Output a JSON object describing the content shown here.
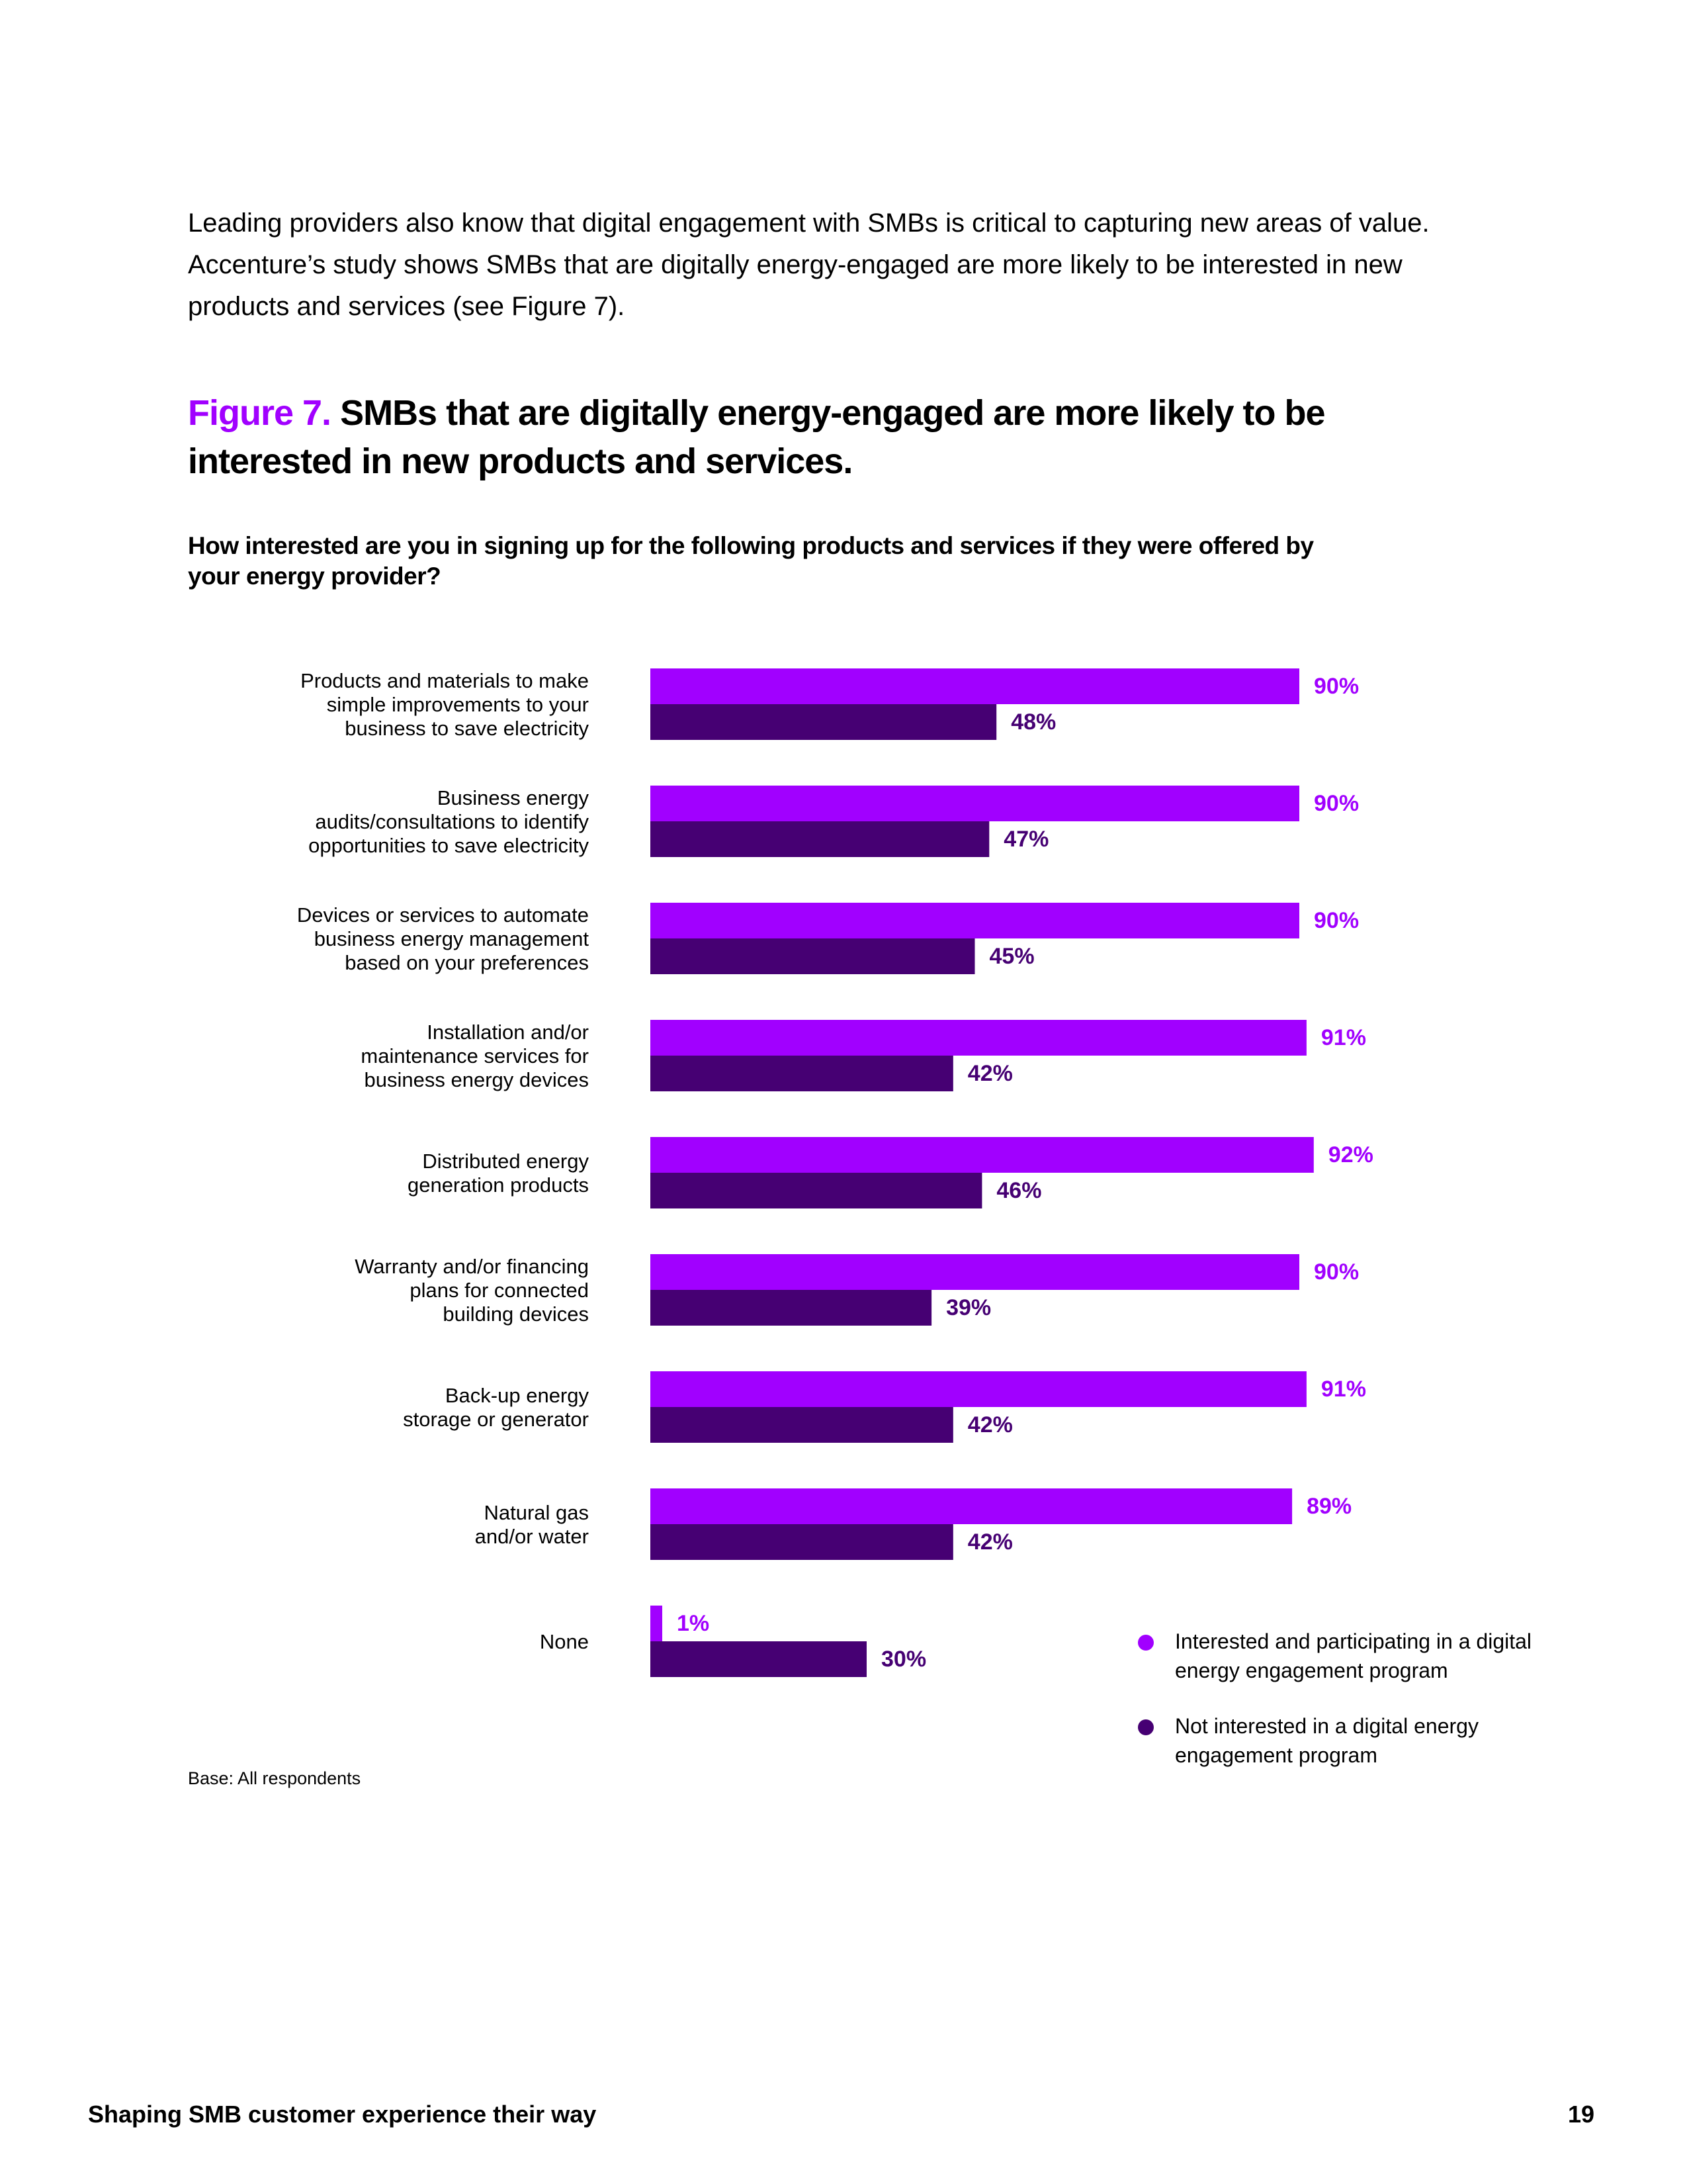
{
  "intro": "Leading providers also know that digital engagement with SMBs is critical to capturing new areas of value. Accenture’s study shows SMBs that are digitally energy-engaged are more likely to be interested in new products and services (see Figure 7).",
  "figure": {
    "number": "Figure 7.",
    "title": "SMBs that are digitally energy-engaged are more likely to be interested in new products and services."
  },
  "question": "How interested are you in signing up for the following products and services if they were offered by your energy provider?",
  "colors": {
    "engaged": "#a100ff",
    "not_engaged": "#460073"
  },
  "chart_data": {
    "type": "bar",
    "orientation": "horizontal",
    "title": "How interested are you in signing up for the following products and services if they were offered by your energy provider?",
    "xlabel": "",
    "ylabel": "",
    "xlim": [
      0,
      100
    ],
    "value_suffix": "%",
    "categories": [
      [
        "Products and materials to make",
        "simple improvements to your",
        "business to save electricity"
      ],
      [
        "Business energy",
        "audits/consultations to identify",
        "opportunities to save electricity"
      ],
      [
        "Devices or services to automate",
        "business energy management",
        "based on your preferences"
      ],
      [
        "Installation and/or",
        "maintenance services for",
        "business energy devices"
      ],
      [
        "Distributed energy",
        "generation products"
      ],
      [
        "Warranty and/or financing",
        "plans for connected",
        "building devices"
      ],
      [
        "Back-up energy",
        "storage or generator"
      ],
      [
        "Natural gas",
        "and/or water"
      ],
      [
        "None"
      ]
    ],
    "series": [
      {
        "name": "Interested and participating in a digital energy engagement program",
        "values": [
          90,
          90,
          90,
          91,
          92,
          90,
          91,
          89,
          1
        ]
      },
      {
        "name": "Not interested in a digital energy engagement program",
        "values": [
          48,
          47,
          45,
          42,
          46,
          39,
          42,
          42,
          30
        ]
      }
    ],
    "legend_position": "bottom-right"
  },
  "legend": [
    {
      "label": "Interested and participating in a digital energy engagement program"
    },
    {
      "label": "Not interested in a digital energy engagement program"
    }
  ],
  "base_note": "Base: All respondents",
  "footer": {
    "title": "Shaping SMB customer experience their way",
    "page": "19"
  }
}
